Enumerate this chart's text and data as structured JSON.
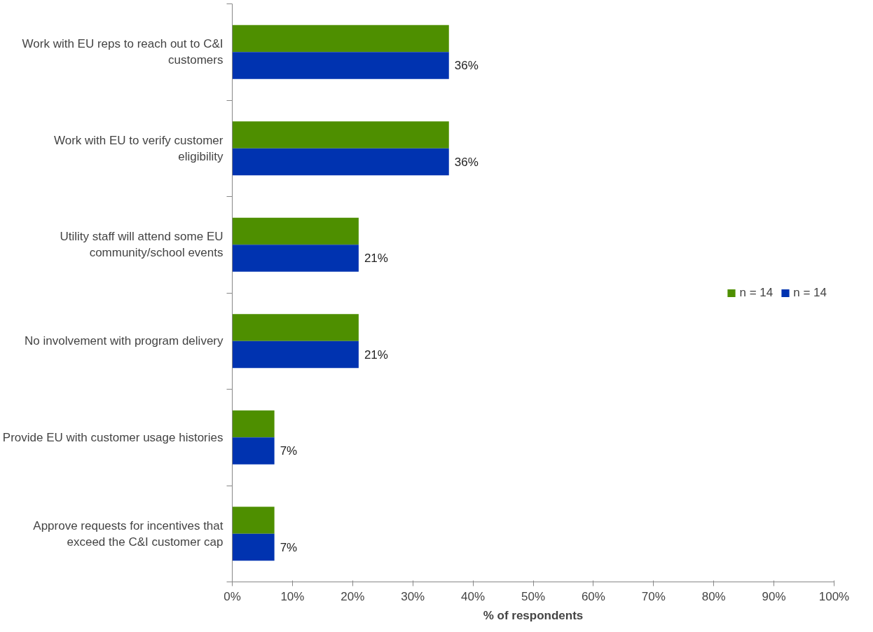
{
  "chart_data": {
    "type": "bar",
    "orientation": "horizontal",
    "xlabel": "% of respondents",
    "categories": [
      "Work with EU reps to reach out to C&I customers",
      "Work with EU to verify customer eligibility",
      "Utility staff will attend some EU community/school events",
      "No involvement with program delivery",
      "Provide EU with customer usage histories",
      "Approve requests for incentives that exceed the C&I customer cap"
    ],
    "series": [
      {
        "name": "n = 14",
        "color": "#4e8f00",
        "values": [
          36,
          36,
          21,
          21,
          7,
          7
        ]
      },
      {
        "name": "n = 14",
        "color": "#0033b0",
        "values": [
          36,
          36,
          21,
          21,
          7,
          7
        ],
        "value_labels": [
          "36%",
          "36%",
          "21%",
          "21%",
          "7%",
          "7%"
        ]
      }
    ],
    "xlim": [
      0,
      100
    ],
    "xticks": [
      {
        "value": 0,
        "label": "0%"
      },
      {
        "value": 10,
        "label": "10%"
      },
      {
        "value": 20,
        "label": "20%"
      },
      {
        "value": 30,
        "label": "30%"
      },
      {
        "value": 40,
        "label": "40%"
      },
      {
        "value": 50,
        "label": "50%"
      },
      {
        "value": 60,
        "label": "60%"
      },
      {
        "value": 70,
        "label": "70%"
      },
      {
        "value": 80,
        "label": "80%"
      },
      {
        "value": 90,
        "label": "90%"
      },
      {
        "value": 100,
        "label": "100%"
      }
    ],
    "grid": false,
    "legend": "right"
  }
}
